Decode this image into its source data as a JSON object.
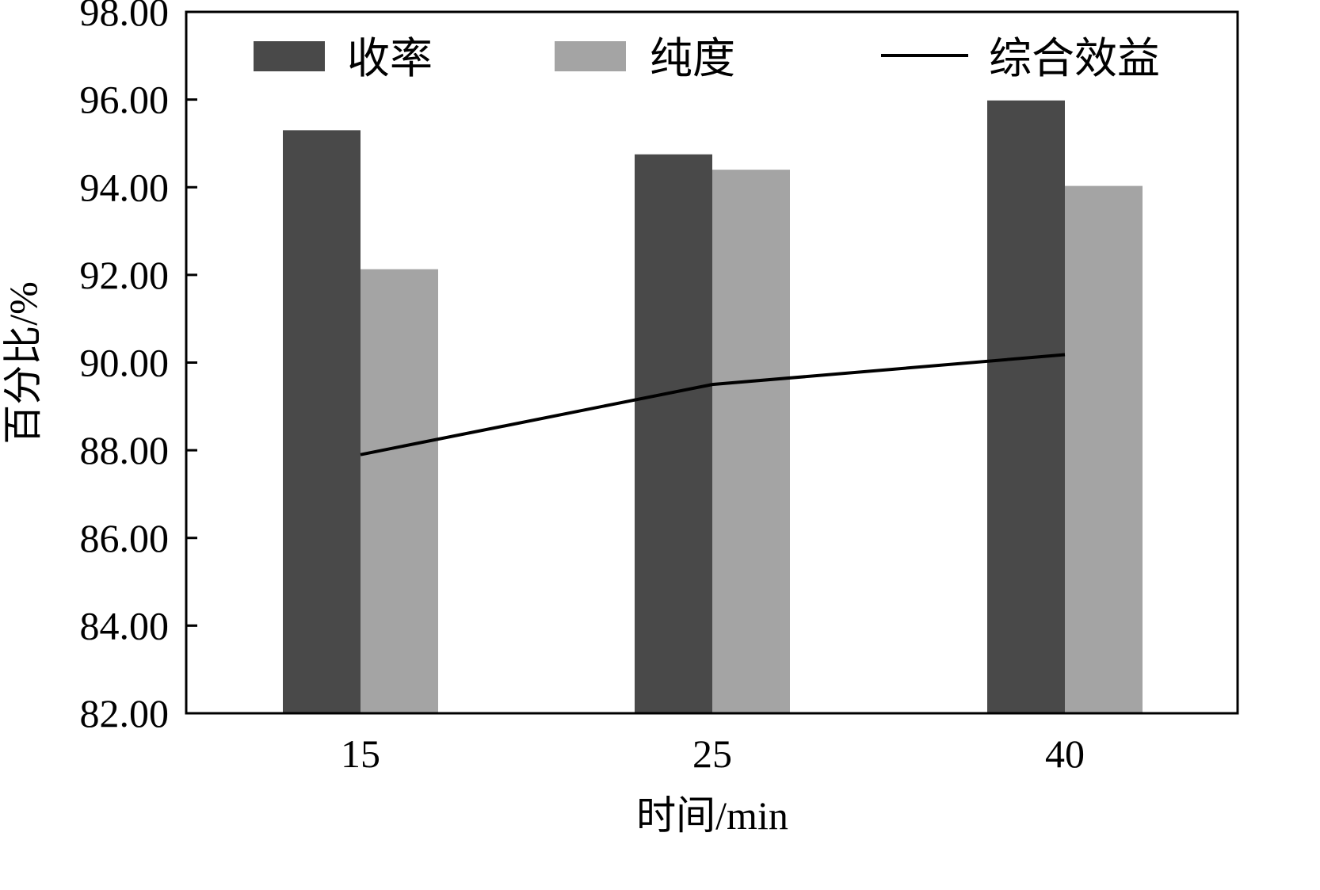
{
  "chart_data": {
    "type": "bar",
    "title": "",
    "xlabel": "时间/min",
    "ylabel": "百分比/%",
    "categories": [
      "15",
      "25",
      "40"
    ],
    "ylim": [
      82,
      98
    ],
    "yticks": [
      "82.00",
      "84.00",
      "86.00",
      "88.00",
      "90.00",
      "92.00",
      "94.00",
      "96.00",
      "98.00"
    ],
    "grid": false,
    "legend_position": "top",
    "series": [
      {
        "name": "收率",
        "kind": "bar",
        "color": "#494949",
        "values": [
          95.3,
          94.75,
          95.98
        ]
      },
      {
        "name": "纯度",
        "kind": "bar",
        "color": "#a4a4a4",
        "values": [
          92.13,
          94.4,
          94.03
        ]
      },
      {
        "name": "综合效益",
        "kind": "line",
        "color": "#000000",
        "values": [
          87.9,
          89.5,
          90.18
        ]
      }
    ]
  }
}
